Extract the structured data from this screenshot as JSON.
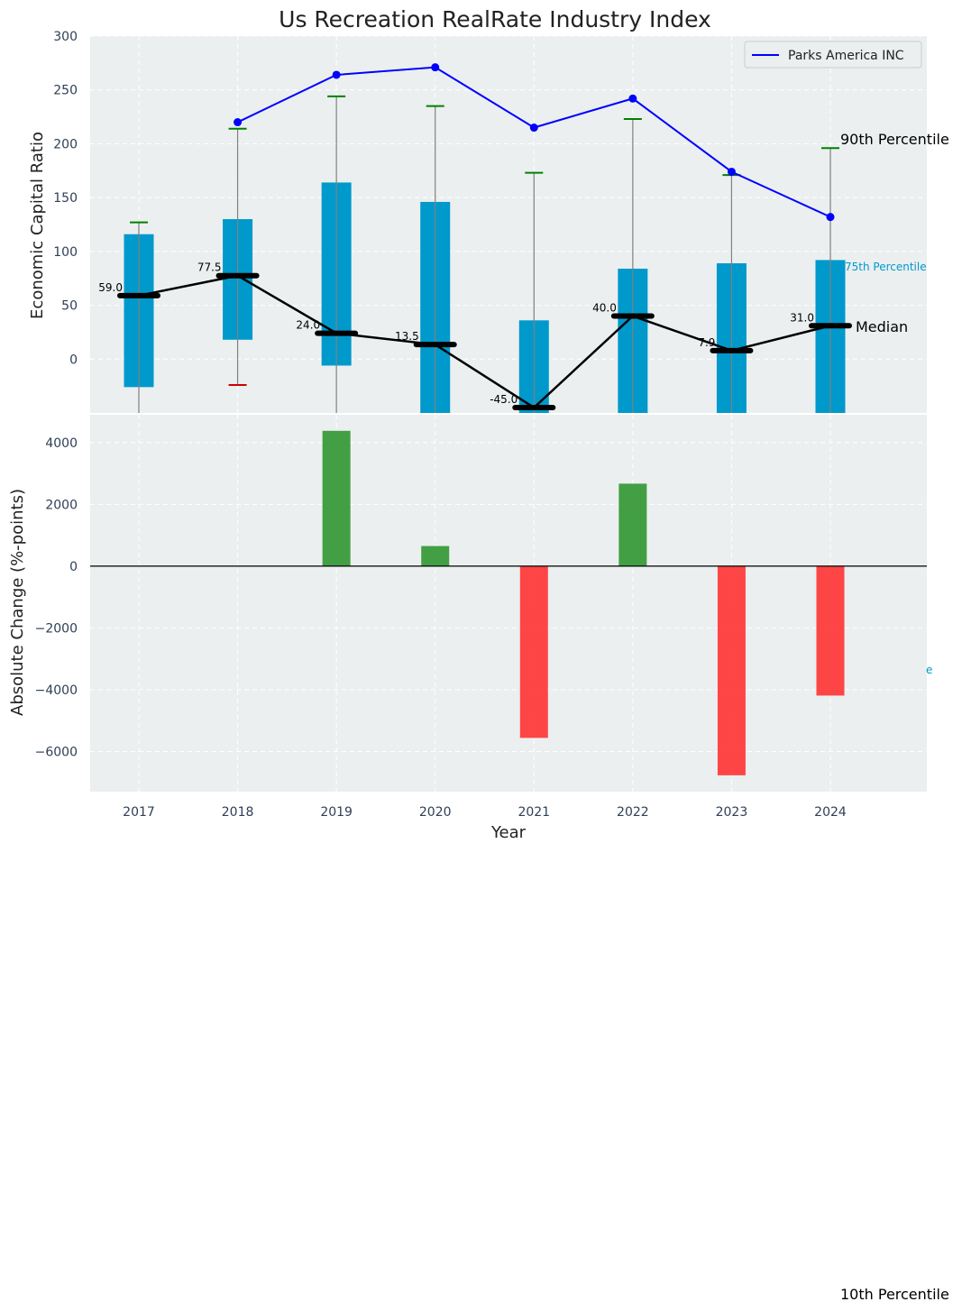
{
  "chart_data": [
    {
      "type": "box",
      "title": "Us Recreation RealRate Industry Index",
      "xlabel": "",
      "ylabel": "Economic Capital Ratio",
      "ylim": [
        -50,
        300
      ],
      "yticks": [
        0,
        50,
        100,
        150,
        200,
        250,
        300
      ],
      "grid": true,
      "categories": [
        "2017",
        "2018",
        "2019",
        "2020",
        "2021",
        "2022",
        "2023",
        "2024"
      ],
      "box_series": {
        "name": "Industry distribution",
        "q1": [
          -26,
          18,
          -6,
          -50,
          -50,
          -50,
          -50,
          -50
        ],
        "q3": [
          116,
          130,
          164,
          146,
          36,
          84,
          89,
          92
        ],
        "whisker_high": [
          127,
          214,
          244,
          235,
          173,
          223,
          171,
          196
        ],
        "whisker_low": [
          null,
          -24,
          null,
          null,
          null,
          null,
          null,
          null
        ],
        "median": [
          59.0,
          77.5,
          24.0,
          13.5,
          -45.0,
          40.0,
          7.9,
          31.0
        ],
        "median_labels": [
          "59.0",
          "77.5",
          "24.0",
          "13.5",
          "-45.0",
          "40.0",
          "7.9",
          "31.0"
        ]
      },
      "line_series": {
        "name": "Parks America INC",
        "values": [
          null,
          220,
          264,
          271,
          215,
          242,
          174,
          132
        ],
        "color": "#0000ff"
      },
      "annotations": {
        "p90": "90th Percentile",
        "p75": "75th Percentile",
        "median": "Median",
        "p10": "10th Percentile",
        "p25_clipped": "e"
      },
      "legend": {
        "position": "top-right",
        "entries": [
          "Parks America INC"
        ]
      },
      "colors": {
        "box": "#0099cc",
        "median": "#000000",
        "whisker_cap_high": "#008000",
        "whisker_cap_low": "#cc0000",
        "background": "#ebeff0"
      }
    },
    {
      "type": "bar",
      "title": "",
      "xlabel": "Year",
      "ylabel": "Absolute Change (%-points)",
      "ylim": [
        -7300,
        4900
      ],
      "yticks": [
        -6000,
        -4000,
        -2000,
        0,
        2000,
        4000
      ],
      "ytick_labels": [
        "−6000",
        "−4000",
        "−2000",
        "0",
        "2000",
        "4000"
      ],
      "grid": true,
      "categories": [
        "2017",
        "2018",
        "2019",
        "2020",
        "2021",
        "2022",
        "2023",
        "2024"
      ],
      "values": [
        0,
        0,
        4380,
        650,
        -5560,
        2670,
        -6770,
        -4190
      ],
      "colors": {
        "positive": "#3a9a3a",
        "negative": "#ff3b3b"
      }
    }
  ]
}
